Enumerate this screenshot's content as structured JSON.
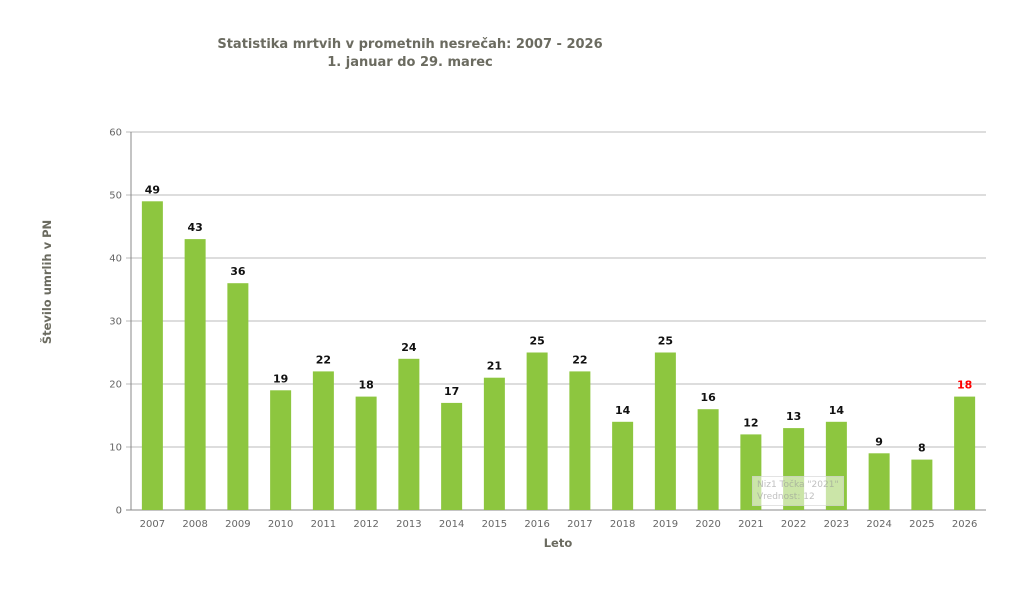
{
  "chart_data": {
    "type": "bar",
    "title": "Statistika mrtvih v prometnih nesrečah: 2007 - 2026",
    "subtitle": "1. januar do 29. marec",
    "xlabel": "Leto",
    "ylabel": "Število umrlih v PN",
    "ylim": [
      0,
      60
    ],
    "yticks": [
      0,
      10,
      20,
      30,
      40,
      50,
      60
    ],
    "grid": true,
    "categories": [
      "2007",
      "2008",
      "2009",
      "2010",
      "2011",
      "2012",
      "2013",
      "2014",
      "2015",
      "2016",
      "2017",
      "2018",
      "2019",
      "2020",
      "2021",
      "2022",
      "2023",
      "2024",
      "2025",
      "2026"
    ],
    "values": [
      49,
      43,
      36,
      19,
      22,
      18,
      24,
      17,
      21,
      25,
      22,
      14,
      25,
      16,
      12,
      13,
      14,
      9,
      8,
      18
    ],
    "bar_color": "#8dc63f",
    "label_color": "#111111",
    "highlight_label_color": "#ff0000",
    "highlight_category": "2026",
    "tooltip": {
      "line1": "Niz1 Točka \"2021\"",
      "line2": "Vrednost: 12"
    }
  }
}
